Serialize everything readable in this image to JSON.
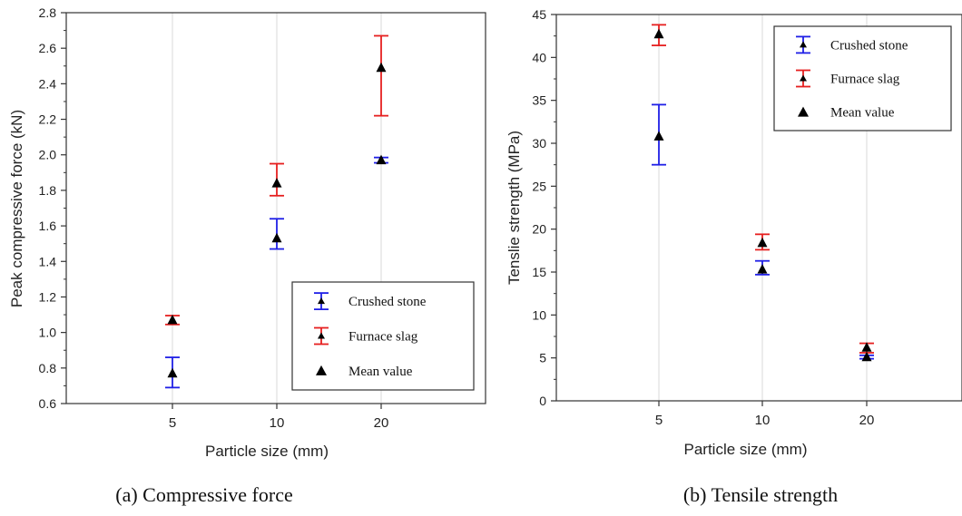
{
  "chart_data": [
    {
      "type": "scatter",
      "caption": "(a) Compressive force",
      "xlabel": "Particle size (mm)",
      "ylabel": "Peak compressive force (kN)",
      "categories": [
        "5",
        "10",
        "20"
      ],
      "ylim": [
        0.6,
        2.8
      ],
      "yticks": [
        "0.6",
        "0.8",
        "1.0",
        "1.2",
        "1.4",
        "1.6",
        "1.8",
        "2.0",
        "2.2",
        "2.4",
        "2.6",
        "2.8"
      ],
      "grid": "vertical",
      "legend_position": "bottom-right",
      "series": [
        {
          "name": "Crushed stone",
          "color": "#1f1fe6",
          "mean": [
            0.77,
            1.53,
            1.97
          ],
          "lower": [
            0.69,
            1.47,
            1.955
          ],
          "upper": [
            0.86,
            1.64,
            1.985
          ]
        },
        {
          "name": "Furnace slag",
          "color": "#e61f1f",
          "mean": [
            1.07,
            1.84,
            2.49
          ],
          "lower": [
            1.045,
            1.77,
            2.22
          ],
          "upper": [
            1.095,
            1.95,
            2.67
          ]
        }
      ],
      "legend": [
        "Crushed stone",
        "Furnace slag",
        "Mean value"
      ]
    },
    {
      "type": "scatter",
      "caption": "(b) Tensile strength",
      "xlabel": "Particle size (mm)",
      "ylabel": "Tenslie strength (MPa)",
      "categories": [
        "5",
        "10",
        "20"
      ],
      "ylim": [
        0,
        45
      ],
      "yticks": [
        "0",
        "5",
        "10",
        "15",
        "20",
        "25",
        "30",
        "35",
        "40",
        "45"
      ],
      "grid": "vertical",
      "legend_position": "top-right",
      "series": [
        {
          "name": "Crushed stone",
          "color": "#1f1fe6",
          "mean": [
            30.8,
            15.3,
            5.1
          ],
          "lower": [
            27.5,
            14.7,
            4.9
          ],
          "upper": [
            34.5,
            16.3,
            5.3
          ]
        },
        {
          "name": "Furnace slag",
          "color": "#e61f1f",
          "mean": [
            42.7,
            18.4,
            6.2
          ],
          "lower": [
            41.4,
            17.6,
            5.6
          ],
          "upper": [
            43.8,
            19.4,
            6.7
          ]
        }
      ],
      "legend": [
        "Crushed stone",
        "Furnace slag",
        "Mean value"
      ]
    }
  ]
}
